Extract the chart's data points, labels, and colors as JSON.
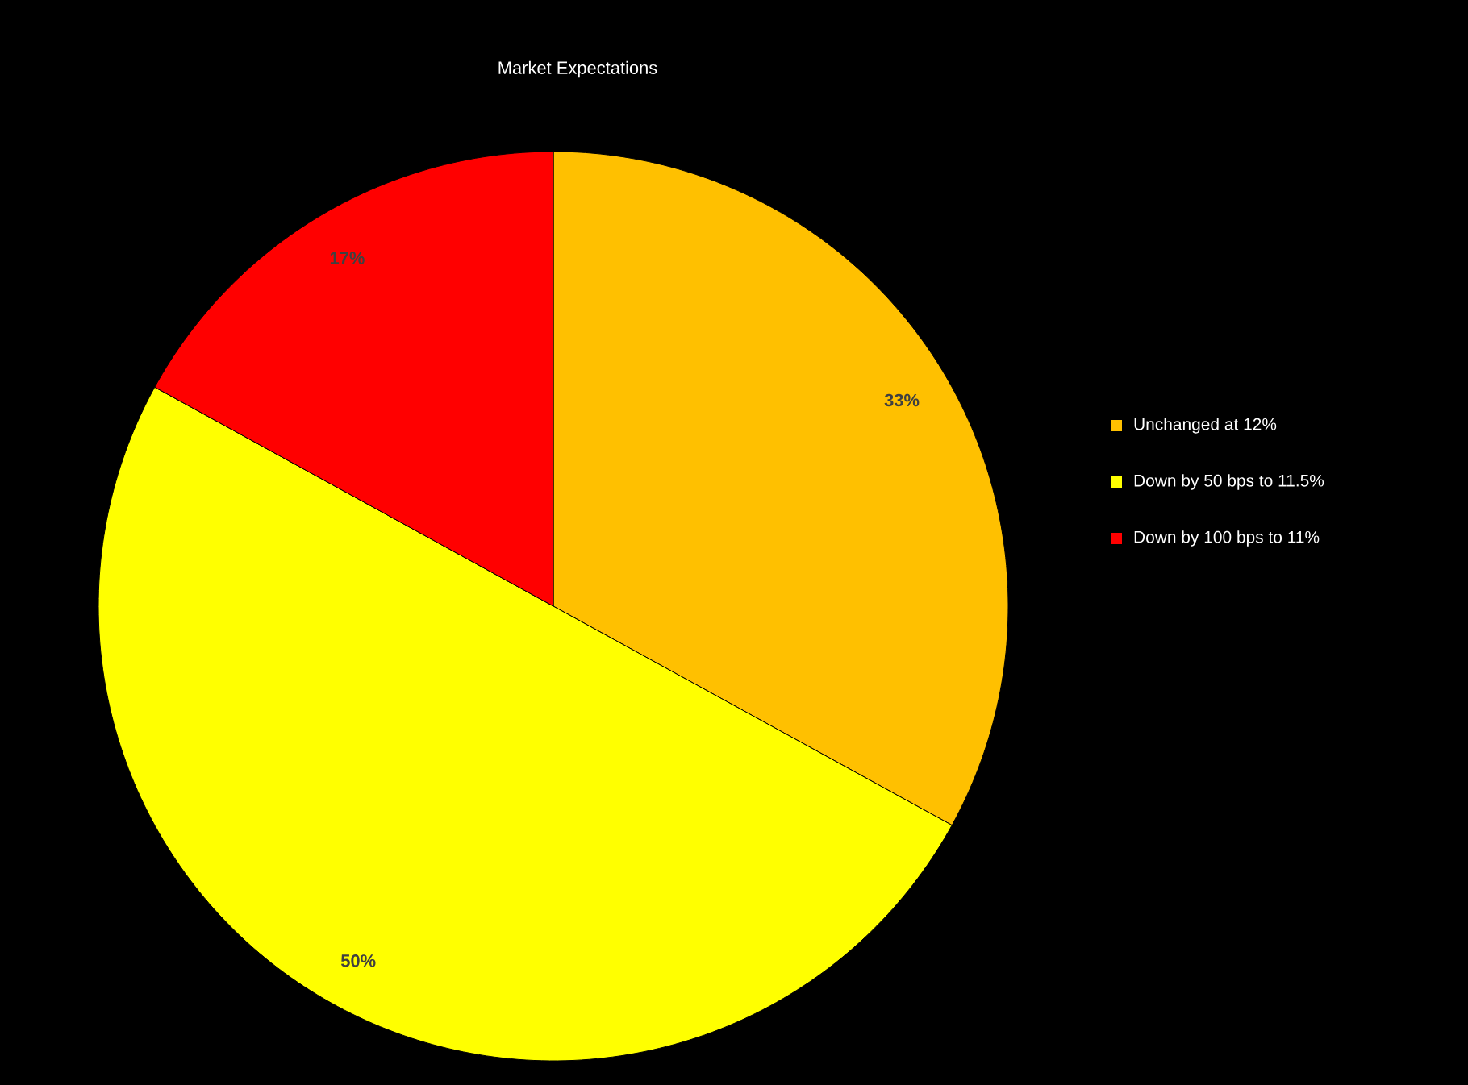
{
  "chart_data": {
    "type": "pie",
    "title": "Market Expectations",
    "categories": [
      "Unchanged at 12%",
      "Down by 50 bps to 11.5%",
      "Down by 100 bps to 11%"
    ],
    "values": [
      33,
      50,
      17
    ],
    "value_labels": [
      "33%",
      "50%",
      "17%"
    ],
    "colors": [
      "#ffc000",
      "#ffff00",
      "#ff0000"
    ],
    "legend": "right"
  }
}
